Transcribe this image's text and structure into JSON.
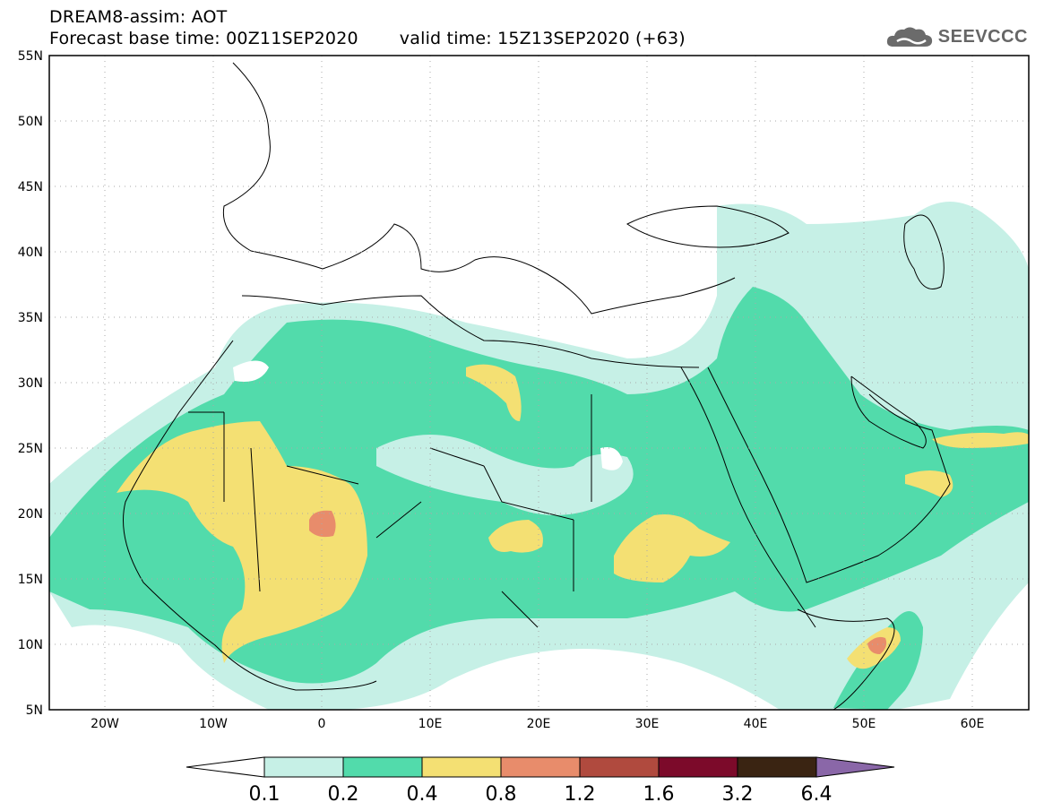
{
  "header": {
    "line1": "DREAM8-assim: AOT",
    "base_time": "Forecast base time: 00Z11SEP2020",
    "valid_time": "valid time: 15Z13SEP2020 (+63)"
  },
  "logo": {
    "text": "SEEVCCC",
    "icon": "cloud-icon"
  },
  "map": {
    "lon_range": [
      -25,
      65
    ],
    "lat_range": [
      5,
      55
    ],
    "lat_ticks": [
      "5N",
      "10N",
      "15N",
      "20N",
      "25N",
      "30N",
      "35N",
      "40N",
      "45N",
      "50N",
      "55N"
    ],
    "lon_ticks": [
      "20W",
      "10W",
      "0",
      "10E",
      "20E",
      "30E",
      "40E",
      "50E",
      "60E"
    ],
    "grid": "dotted"
  },
  "colorbar": {
    "levels": [
      "0.1",
      "0.2",
      "0.4",
      "0.8",
      "1.2",
      "1.6",
      "3.2",
      "6.4"
    ],
    "colors": [
      "#c6f0e6",
      "#52dbab",
      "#f4e073",
      "#e88c6b",
      "#b04a3e",
      "#7c0a2a",
      "#3a2412",
      "#8a67a8"
    ]
  }
}
